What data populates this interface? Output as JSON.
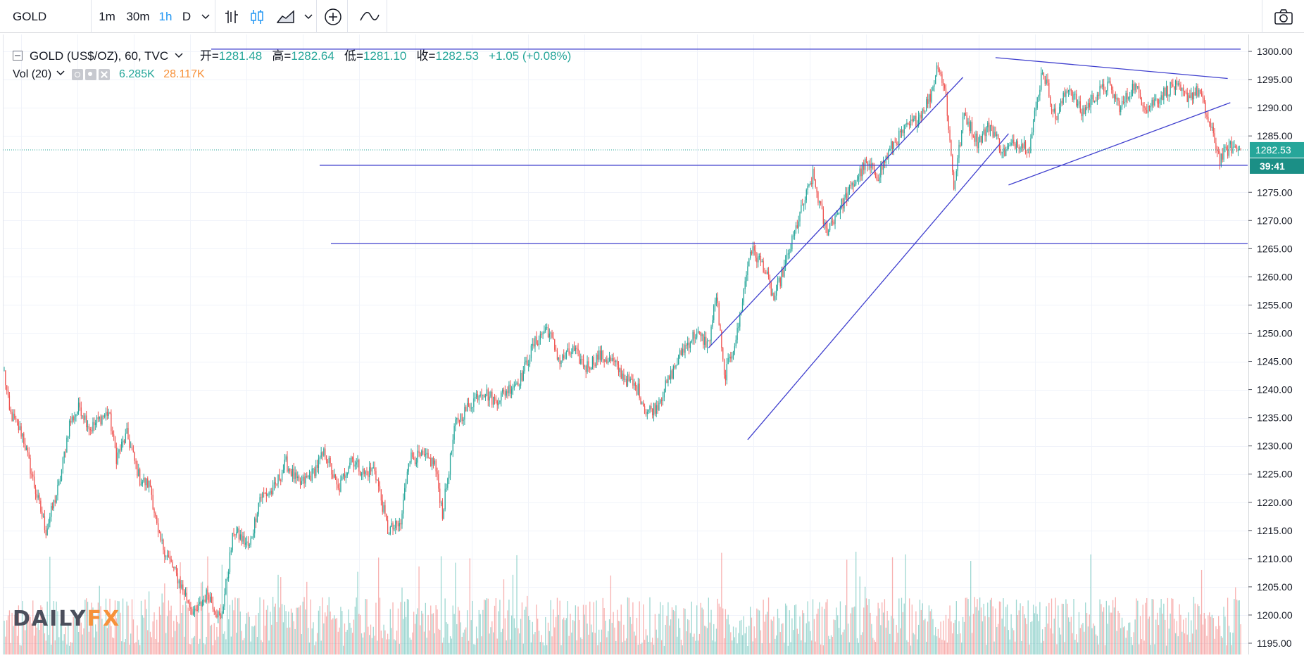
{
  "toolbar": {
    "symbol": "GOLD",
    "intervals": [
      "1m",
      "30m",
      "1h",
      "D"
    ],
    "active_interval": "1h",
    "icons": [
      "chevron-down-icon",
      "bar-style-icon",
      "candle-style-icon",
      "area-style-icon",
      "chevron-down-icon",
      "add-indicator-icon",
      "compare-wave-icon",
      "camera-icon"
    ]
  },
  "legend": {
    "collapse_icon": "minus-box-icon",
    "title": "GOLD (US$/OZ), 60, TVC",
    "open_label": "开=",
    "open_value": "1281.48",
    "high_label": "高=",
    "high_value": "1282.64",
    "low_label": "低=",
    "low_value": "1281.10",
    "close_label": "收=",
    "close_value": "1282.53",
    "change": "+1.05 (+0.08%)",
    "volume_label": "Vol (20)",
    "volume_value": "6.285K",
    "volume_ma": "28.117K"
  },
  "price_axis": {
    "current_price": "1282.53",
    "countdown": "39:41",
    "ticks": [
      "1300.00",
      "1295.00",
      "1290.00",
      "1285.00",
      "1275.00",
      "1270.00",
      "1265.00",
      "1260.00",
      "1255.00",
      "1250.00",
      "1245.00",
      "1240.00",
      "1235.00",
      "1230.00",
      "1225.00",
      "1220.00",
      "1215.00",
      "1210.00",
      "1205.00",
      "1200.00",
      "1195.00"
    ]
  },
  "logo": {
    "text_a": "DAILY",
    "text_b": "FX"
  },
  "colors": {
    "up": "#26a69a",
    "down": "#ef5350",
    "drawing": "#3f3fce",
    "accent": "#2196f3",
    "volume_orange": "#f7913a"
  },
  "chart_data": {
    "type": "candlestick",
    "ylim": [
      1193,
      1303
    ],
    "waypoints": [
      [
        0,
        1243
      ],
      [
        4,
        1236
      ],
      [
        14,
        1232
      ],
      [
        24,
        1222
      ],
      [
        32,
        1215
      ],
      [
        42,
        1223
      ],
      [
        50,
        1234
      ],
      [
        58,
        1237
      ],
      [
        66,
        1233
      ],
      [
        74,
        1235
      ],
      [
        80,
        1236
      ],
      [
        86,
        1228
      ],
      [
        94,
        1232
      ],
      [
        104,
        1224
      ],
      [
        112,
        1223
      ],
      [
        118,
        1214
      ],
      [
        126,
        1210
      ],
      [
        136,
        1205
      ],
      [
        146,
        1200
      ],
      [
        156,
        1204
      ],
      [
        166,
        1199
      ],
      [
        176,
        1215
      ],
      [
        188,
        1212
      ],
      [
        196,
        1221
      ],
      [
        206,
        1222
      ],
      [
        216,
        1227
      ],
      [
        226,
        1223
      ],
      [
        236,
        1225
      ],
      [
        246,
        1229
      ],
      [
        256,
        1222
      ],
      [
        266,
        1228
      ],
      [
        276,
        1225
      ],
      [
        284,
        1226
      ],
      [
        294,
        1215
      ],
      [
        304,
        1216
      ],
      [
        310,
        1228
      ],
      [
        320,
        1228
      ],
      [
        330,
        1227
      ],
      [
        336,
        1218
      ],
      [
        346,
        1234
      ],
      [
        356,
        1237
      ],
      [
        366,
        1240
      ],
      [
        376,
        1238
      ],
      [
        386,
        1240
      ],
      [
        396,
        1242
      ],
      [
        406,
        1248
      ],
      [
        416,
        1251
      ],
      [
        426,
        1245
      ],
      [
        436,
        1247
      ],
      [
        446,
        1244
      ],
      [
        456,
        1246
      ],
      [
        466,
        1245
      ],
      [
        476,
        1242
      ],
      [
        486,
        1240
      ],
      [
        492,
        1236
      ],
      [
        500,
        1237
      ],
      [
        510,
        1242
      ],
      [
        520,
        1247
      ],
      [
        530,
        1250
      ],
      [
        540,
        1248
      ],
      [
        546,
        1257
      ],
      [
        552,
        1242
      ],
      [
        562,
        1250
      ],
      [
        572,
        1265
      ],
      [
        582,
        1262
      ],
      [
        590,
        1256
      ],
      [
        600,
        1263
      ],
      [
        610,
        1271
      ],
      [
        620,
        1278
      ],
      [
        630,
        1268
      ],
      [
        640,
        1272
      ],
      [
        650,
        1276
      ],
      [
        660,
        1280
      ],
      [
        670,
        1278
      ],
      [
        680,
        1283
      ],
      [
        690,
        1286
      ],
      [
        700,
        1288
      ],
      [
        710,
        1292
      ],
      [
        716,
        1298
      ],
      [
        722,
        1292
      ],
      [
        728,
        1276
      ],
      [
        736,
        1289
      ],
      [
        746,
        1284
      ],
      [
        756,
        1287
      ],
      [
        766,
        1282
      ],
      [
        776,
        1284
      ],
      [
        786,
        1283
      ],
      [
        796,
        1297
      ],
      [
        806,
        1288
      ],
      [
        816,
        1294
      ],
      [
        826,
        1289
      ],
      [
        836,
        1292
      ],
      [
        846,
        1294
      ],
      [
        856,
        1290
      ],
      [
        866,
        1294
      ],
      [
        876,
        1290
      ],
      [
        886,
        1292
      ],
      [
        896,
        1294
      ],
      [
        906,
        1292
      ],
      [
        916,
        1293
      ],
      [
        924,
        1287
      ],
      [
        932,
        1281
      ],
      [
        940,
        1283
      ],
      [
        948,
        1282.5
      ]
    ],
    "candle_count": 949,
    "last_close": 1282.53,
    "drawings": [
      {
        "kind": "horizontal_line",
        "price": 1300.4
      },
      {
        "kind": "horizontal_line",
        "price": 1279.8
      },
      {
        "kind": "horizontal_line",
        "price": 1265.9
      },
      {
        "kind": "channel_upper",
        "points": [
          [
            540,
            1247.4
          ],
          [
            735,
            1295.4
          ]
        ]
      },
      {
        "kind": "channel_lower",
        "points": [
          [
            570,
            1231.1
          ],
          [
            770,
            1285.4
          ]
        ]
      },
      {
        "kind": "triangle_top",
        "points": [
          [
            760,
            1298.9
          ],
          [
            938,
            1295.2
          ]
        ]
      },
      {
        "kind": "triangle_bottom",
        "points": [
          [
            770,
            1276.3
          ],
          [
            940,
            1290.9
          ]
        ]
      }
    ]
  }
}
